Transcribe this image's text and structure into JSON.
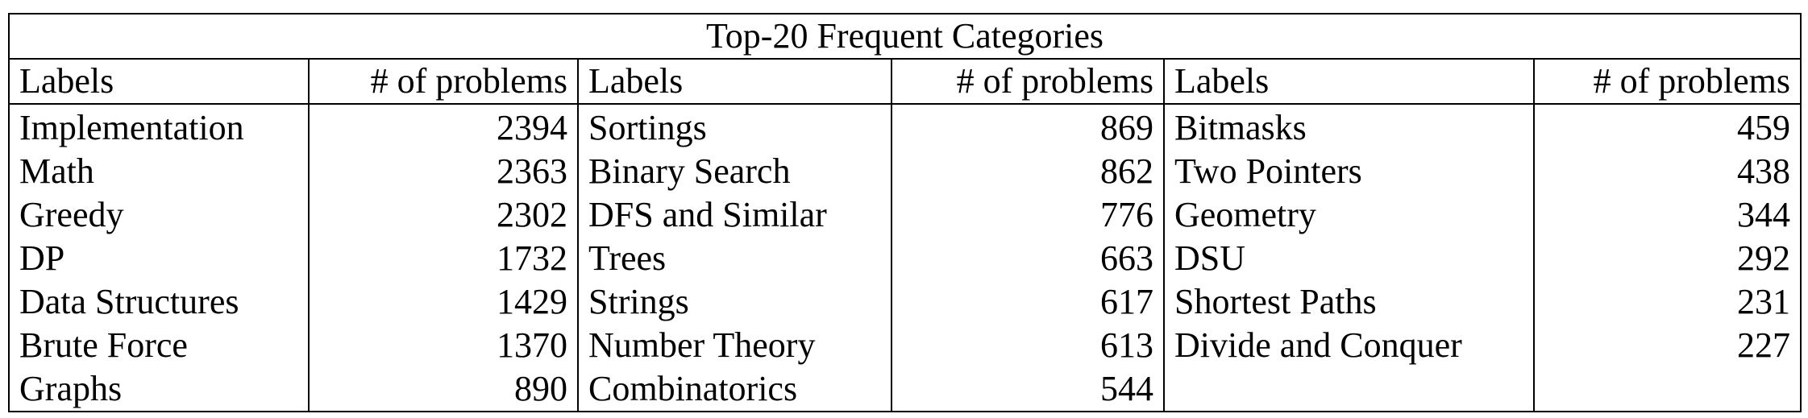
{
  "table": {
    "title": "Top-20 Frequent Categories",
    "header": {
      "label": "Labels",
      "count": "# of problems"
    },
    "columns": [
      [
        {
          "label": "Implementation",
          "count": "2394"
        },
        {
          "label": "Math",
          "count": "2363"
        },
        {
          "label": "Greedy",
          "count": "2302"
        },
        {
          "label": "DP",
          "count": "1732"
        },
        {
          "label": "Data Structures",
          "count": "1429"
        },
        {
          "label": "Brute Force",
          "count": "1370"
        },
        {
          "label": "Graphs",
          "count": "890"
        }
      ],
      [
        {
          "label": "Sortings",
          "count": "869"
        },
        {
          "label": "Binary Search",
          "count": "862"
        },
        {
          "label": "DFS and Similar",
          "count": "776"
        },
        {
          "label": "Trees",
          "count": "663"
        },
        {
          "label": "Strings",
          "count": "617"
        },
        {
          "label": "Number Theory",
          "count": "613"
        },
        {
          "label": "Combinatorics",
          "count": "544"
        }
      ],
      [
        {
          "label": "Bitmasks",
          "count": "459"
        },
        {
          "label": "Two Pointers",
          "count": "438"
        },
        {
          "label": "Geometry",
          "count": "344"
        },
        {
          "label": "DSU",
          "count": "292"
        },
        {
          "label": "Shortest Paths",
          "count": "231"
        },
        {
          "label": "Divide and Conquer",
          "count": "227"
        },
        {
          "label": "",
          "count": ""
        }
      ]
    ]
  }
}
